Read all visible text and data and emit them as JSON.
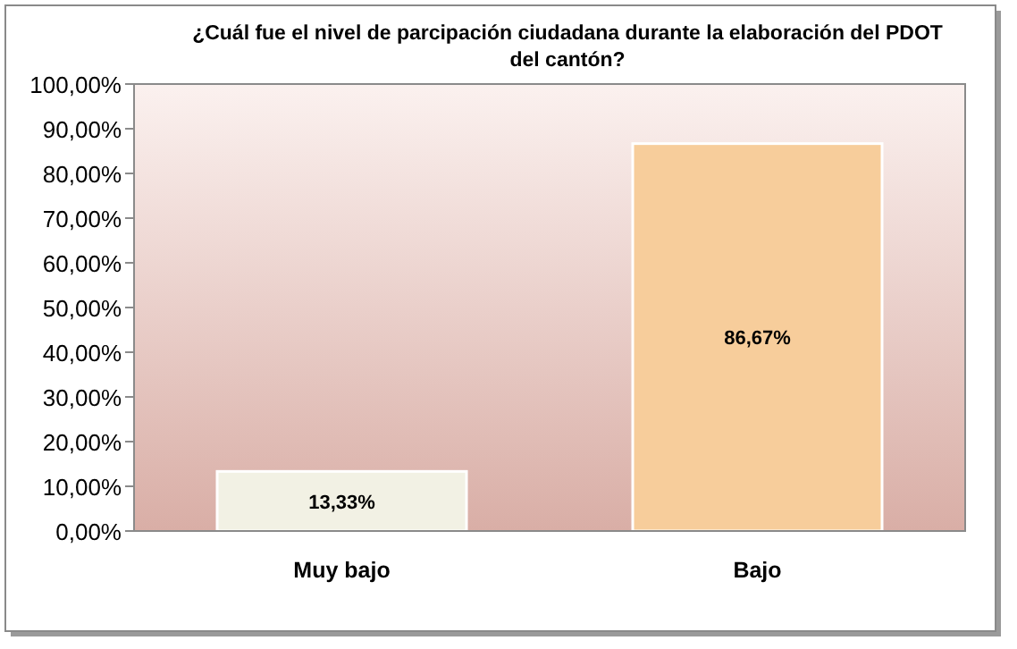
{
  "chart_data": {
    "type": "bar",
    "title": "¿Cuál fue el nivel de parcipación ciudadana durante la elaboración del PDOT del cantón?",
    "categories": [
      "Muy bajo",
      "Bajo"
    ],
    "values": [
      13.33,
      86.67
    ],
    "colors": [
      "#f2f1e4",
      "#f7cd9b"
    ],
    "value_labels": [
      "13,33%",
      "86,67%"
    ],
    "ylim": [
      0,
      100
    ],
    "yticks": [
      {
        "value": 0,
        "label": "0,00%"
      },
      {
        "value": 10,
        "label": "10,00%"
      },
      {
        "value": 20,
        "label": "20,00%"
      },
      {
        "value": 30,
        "label": "30,00%"
      },
      {
        "value": 40,
        "label": "40,00%"
      },
      {
        "value": 50,
        "label": "50,00%"
      },
      {
        "value": 60,
        "label": "60,00%"
      },
      {
        "value": 70,
        "label": "70,00%"
      },
      {
        "value": 80,
        "label": "80,00%"
      },
      {
        "value": 90,
        "label": "90,00%"
      },
      {
        "value": 100,
        "label": "100,00%"
      }
    ],
    "grid": false
  }
}
